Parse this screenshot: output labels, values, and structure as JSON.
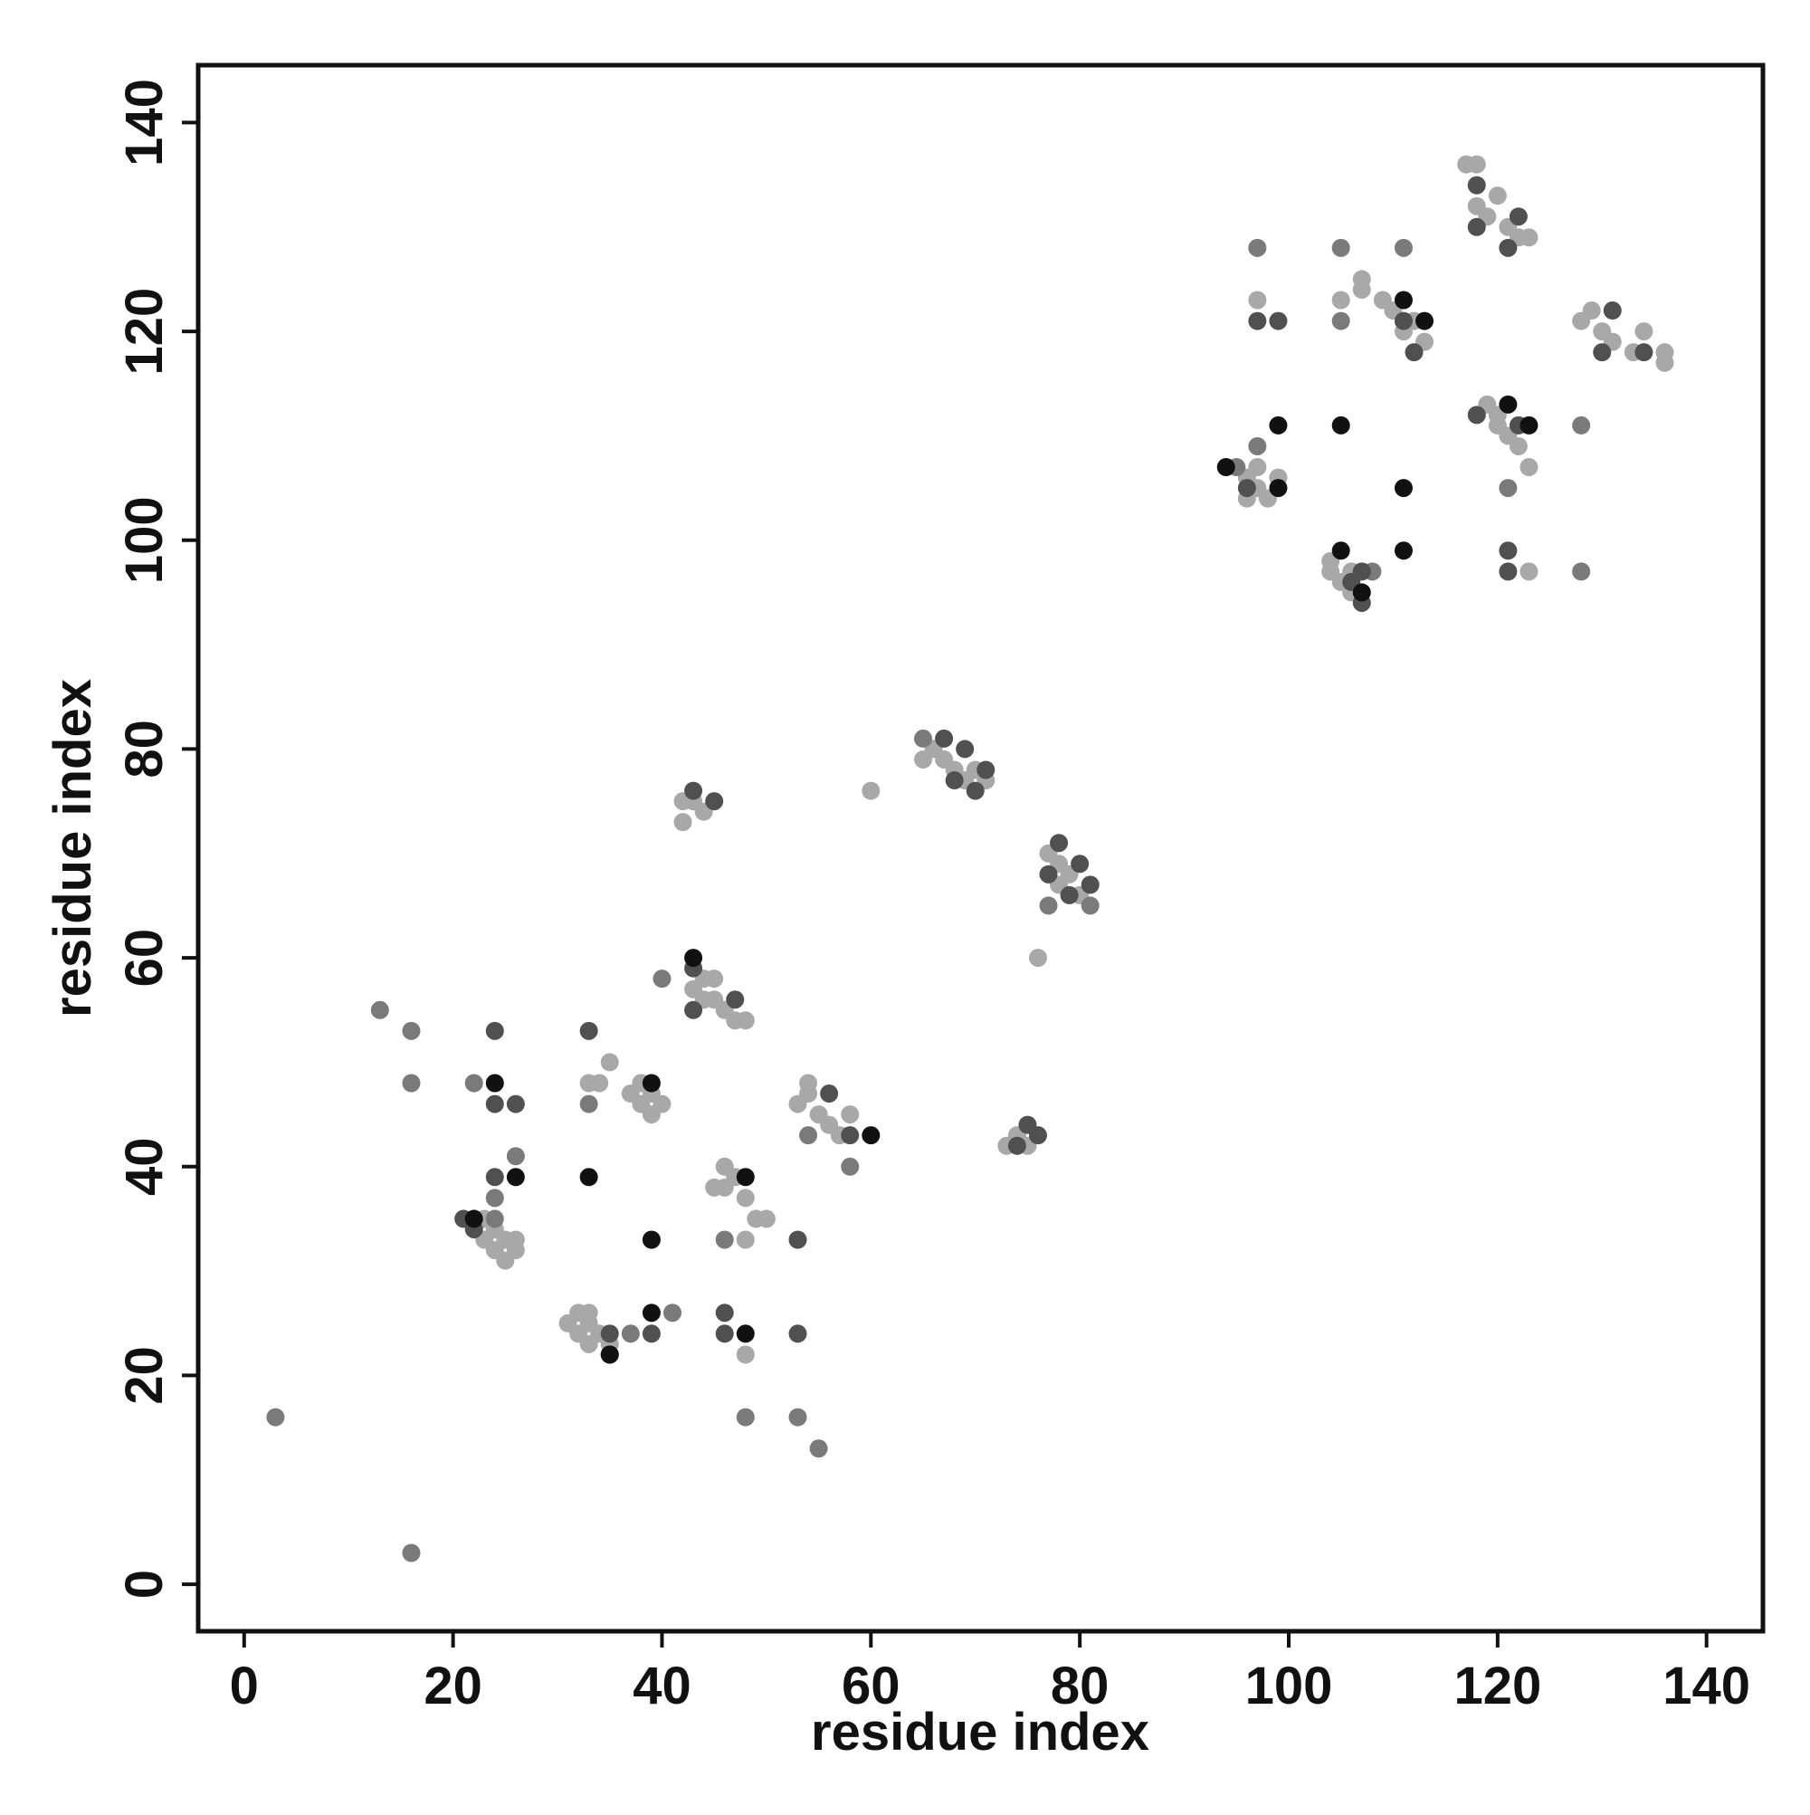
{
  "chart_data": {
    "type": "scatter",
    "xlabel": "residue index",
    "ylabel": "residue index",
    "xlim": [
      -4.4,
      145.4
    ],
    "ylim": [
      -4.5,
      145.5
    ],
    "xticks": [
      0,
      20,
      40,
      60,
      80,
      100,
      120,
      140
    ],
    "yticks": [
      0,
      20,
      40,
      60,
      80,
      100,
      120,
      140
    ],
    "series": [
      {
        "color": "#a8a8a8",
        "x": [
          23,
          24,
          25,
          26,
          25,
          24,
          23,
          26,
          31,
          32,
          32,
          33,
          33,
          34,
          33,
          35,
          37,
          38,
          38,
          39,
          40,
          39,
          43,
          44,
          45,
          46,
          47,
          48,
          45,
          44,
          45,
          46,
          47,
          48,
          46,
          53,
          54,
          55,
          56,
          57,
          58,
          54,
          65,
          66,
          67,
          68,
          69,
          70,
          71,
          77,
          78,
          79,
          80,
          78,
          73,
          74,
          75,
          42,
          43,
          42,
          76,
          60,
          96,
          97,
          98,
          97,
          96,
          99,
          104,
          105,
          106,
          104,
          106,
          109,
          110,
          111,
          112,
          113,
          119,
          120,
          121,
          122,
          123,
          120,
          117,
          118,
          118,
          119,
          120,
          121,
          122,
          123,
          128,
          129,
          130,
          131,
          133,
          134,
          136,
          136,
          105,
          107,
          107,
          97,
          123,
          48,
          48,
          49,
          50,
          44,
          35,
          34,
          33
        ],
        "y": [
          33,
          32,
          33,
          32,
          31,
          34,
          35,
          33,
          25,
          24,
          26,
          23,
          25,
          24,
          26,
          23,
          47,
          46,
          48,
          45,
          46,
          47,
          57,
          56,
          58,
          55,
          54,
          54,
          56,
          58,
          38,
          40,
          39,
          37,
          38,
          46,
          47,
          45,
          44,
          43,
          45,
          48,
          79,
          80,
          79,
          78,
          77,
          78,
          77,
          70,
          69,
          68,
          66,
          67,
          42,
          43,
          42,
          73,
          75,
          75,
          60,
          76,
          106,
          105,
          104,
          107,
          104,
          106,
          97,
          96,
          95,
          98,
          97,
          123,
          122,
          120,
          121,
          119,
          113,
          111,
          110,
          109,
          107,
          112,
          136,
          136,
          132,
          131,
          133,
          130,
          129,
          129,
          121,
          122,
          120,
          119,
          118,
          120,
          118,
          117,
          123,
          124,
          125,
          123,
          97,
          22,
          33,
          35,
          35,
          74,
          50,
          48,
          48
        ]
      },
      {
        "color": "#7a7a7a",
        "x": [
          3,
          16,
          13,
          16,
          16,
          22,
          24,
          26,
          24,
          46,
          48,
          53,
          55,
          58,
          41,
          37,
          40,
          33,
          97,
          108,
          105,
          97,
          105,
          111,
          128,
          128,
          121,
          65,
          95,
          77,
          81,
          54
        ],
        "y": [
          16,
          3,
          55,
          53,
          48,
          48,
          37,
          41,
          35,
          33,
          16,
          16,
          13,
          40,
          26,
          24,
          58,
          46,
          109,
          97,
          121,
          128,
          128,
          128,
          111,
          97,
          105,
          81,
          107,
          65,
          65,
          43
        ]
      },
      {
        "color": "#505050",
        "x": [
          21,
          22,
          24,
          24,
          26,
          24,
          35,
          35,
          39,
          46,
          46,
          53,
          53,
          33,
          43,
          47,
          43,
          45,
          43,
          67,
          69,
          70,
          71,
          68,
          78,
          80,
          81,
          77,
          79,
          76,
          75,
          74,
          58,
          56,
          97,
          121,
          118,
          118,
          118,
          122,
          121,
          130,
          131,
          134,
          112,
          111,
          96,
          106,
          107,
          107,
          99,
          121,
          122
        ],
        "y": [
          35,
          34,
          53,
          46,
          46,
          39,
          22,
          24,
          24,
          24,
          26,
          24,
          33,
          53,
          59,
          56,
          55,
          75,
          76,
          81,
          80,
          76,
          78,
          77,
          71,
          69,
          67,
          68,
          66,
          43,
          44,
          42,
          43,
          47,
          121,
          97,
          112,
          130,
          134,
          131,
          128,
          118,
          122,
          118,
          118,
          121,
          105,
          96,
          94,
          97,
          121,
          99,
          111
        ]
      },
      {
        "color": "#111111",
        "x": [
          24,
          26,
          22,
          33,
          39,
          39,
          48,
          39,
          43,
          48,
          60,
          35,
          99,
          99,
          105,
          111,
          105,
          111,
          94,
          107,
          111,
          113,
          121,
          123
        ],
        "y": [
          48,
          39,
          35,
          39,
          33,
          26,
          24,
          48,
          60,
          39,
          43,
          22,
          111,
          105,
          111,
          105,
          99,
          99,
          107,
          95,
          123,
          121,
          113,
          111
        ]
      }
    ]
  }
}
